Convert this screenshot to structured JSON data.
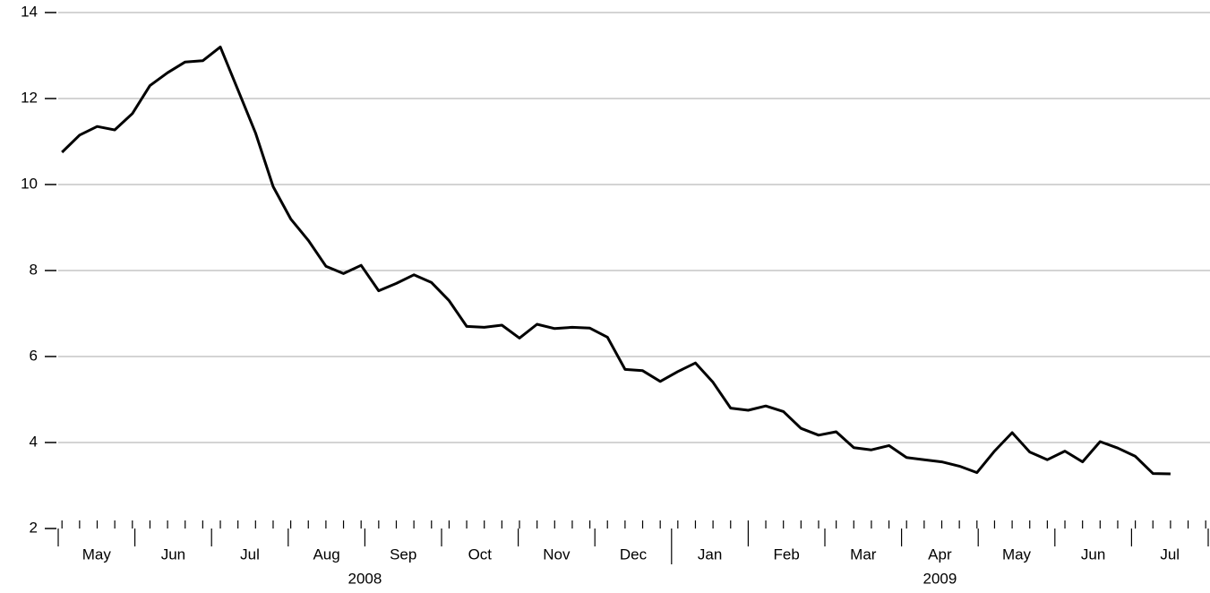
{
  "chart_data": {
    "type": "line",
    "color": "#000000",
    "values": [
      10.75,
      11.15,
      11.35,
      11.27,
      11.65,
      12.3,
      12.6,
      12.85,
      12.88,
      13.2,
      12.2,
      11.2,
      9.95,
      9.2,
      8.7,
      8.1,
      7.93,
      8.12,
      7.53,
      7.7,
      7.9,
      7.72,
      7.3,
      6.7,
      6.68,
      6.73,
      6.43,
      6.75,
      6.65,
      6.68,
      6.66,
      6.45,
      5.7,
      5.67,
      5.42,
      5.65,
      5.85,
      5.4,
      4.8,
      4.75,
      4.85,
      4.72,
      4.33,
      4.17,
      4.25,
      3.88,
      3.83,
      3.93,
      3.65,
      3.6,
      3.55,
      3.45,
      3.3,
      3.8,
      4.23,
      3.78,
      3.6,
      3.8,
      3.55,
      4.02,
      3.87,
      3.68,
      3.28,
      3.27
    ],
    "months": [
      "May",
      "Jun",
      "Jul",
      "Aug",
      "Sep",
      "Oct",
      "Nov",
      "Dec",
      "Jan",
      "Feb",
      "Mar",
      "Apr",
      "May",
      "Jun",
      "Jul"
    ],
    "years": [
      "2008",
      "2009"
    ],
    "ylim": [
      2,
      14
    ],
    "yticks": [
      2,
      4,
      6,
      8,
      10,
      12,
      14
    ],
    "grid": true
  }
}
